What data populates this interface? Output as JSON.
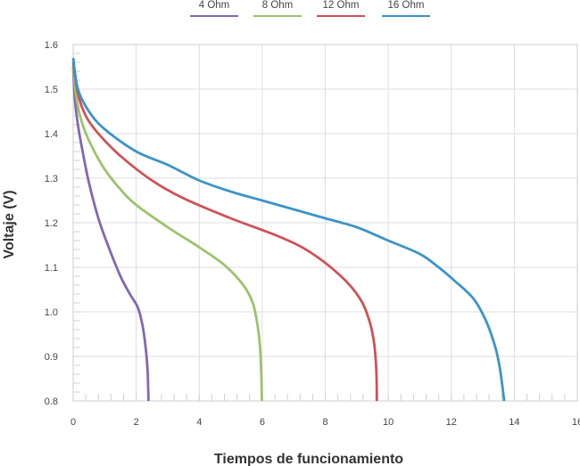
{
  "chart_data": {
    "type": "line",
    "title": "",
    "xlabel": "Tiempos de funcionamiento",
    "ylabel": "Voltaje (V)",
    "xlim": [
      0,
      16
    ],
    "ylim": [
      0.8,
      1.6
    ],
    "x_ticks": [
      "0",
      "2",
      "4",
      "6",
      "8",
      "10",
      "12",
      "14",
      "16"
    ],
    "y_ticks": [
      "0.8",
      "0.9",
      "1.0",
      "1.1",
      "1.2",
      "1.3",
      "1.4",
      "1.5",
      "1.6"
    ],
    "grid": true,
    "legend_position": "top-center",
    "series": [
      {
        "name": "4 Ohm",
        "color": "#8068b2",
        "points": [
          [
            0,
            1.55
          ],
          [
            0.05,
            1.48
          ],
          [
            0.15,
            1.42
          ],
          [
            0.3,
            1.36
          ],
          [
            0.5,
            1.29
          ],
          [
            0.8,
            1.21
          ],
          [
            1.1,
            1.15
          ],
          [
            1.5,
            1.08
          ],
          [
            1.8,
            1.04
          ],
          [
            2.05,
            1.01
          ],
          [
            2.2,
            0.97
          ],
          [
            2.3,
            0.92
          ],
          [
            2.36,
            0.87
          ],
          [
            2.38,
            0.83
          ],
          [
            2.39,
            0.8
          ]
        ]
      },
      {
        "name": "8 Ohm",
        "color": "#9bc36a",
        "points": [
          [
            0,
            1.55
          ],
          [
            0.1,
            1.48
          ],
          [
            0.3,
            1.42
          ],
          [
            0.6,
            1.37
          ],
          [
            1.0,
            1.32
          ],
          [
            1.5,
            1.275
          ],
          [
            2.0,
            1.24
          ],
          [
            3.0,
            1.19
          ],
          [
            4.0,
            1.145
          ],
          [
            4.8,
            1.105
          ],
          [
            5.4,
            1.06
          ],
          [
            5.7,
            1.02
          ],
          [
            5.85,
            0.97
          ],
          [
            5.93,
            0.92
          ],
          [
            5.97,
            0.86
          ],
          [
            5.99,
            0.8
          ]
        ]
      },
      {
        "name": "12 Ohm",
        "color": "#cf5156",
        "points": [
          [
            0,
            1.56
          ],
          [
            0.15,
            1.49
          ],
          [
            0.4,
            1.44
          ],
          [
            0.8,
            1.4
          ],
          [
            1.5,
            1.35
          ],
          [
            2.5,
            1.295
          ],
          [
            3.5,
            1.255
          ],
          [
            5.0,
            1.21
          ],
          [
            6.5,
            1.17
          ],
          [
            7.5,
            1.135
          ],
          [
            8.5,
            1.08
          ],
          [
            9.1,
            1.03
          ],
          [
            9.4,
            0.98
          ],
          [
            9.55,
            0.93
          ],
          [
            9.62,
            0.87
          ],
          [
            9.64,
            0.8
          ]
        ]
      },
      {
        "name": "16 Ohm",
        "color": "#3c94c8",
        "points": [
          [
            0,
            1.57
          ],
          [
            0.15,
            1.5
          ],
          [
            0.5,
            1.45
          ],
          [
            1.0,
            1.41
          ],
          [
            2.0,
            1.36
          ],
          [
            3.0,
            1.33
          ],
          [
            4.0,
            1.295
          ],
          [
            5.0,
            1.27
          ],
          [
            6.0,
            1.25
          ],
          [
            7.0,
            1.23
          ],
          [
            8.0,
            1.21
          ],
          [
            9.0,
            1.19
          ],
          [
            10.0,
            1.16
          ],
          [
            11.0,
            1.13
          ],
          [
            11.6,
            1.1
          ],
          [
            12.1,
            1.07
          ],
          [
            12.7,
            1.03
          ],
          [
            13.1,
            0.98
          ],
          [
            13.4,
            0.92
          ],
          [
            13.55,
            0.87
          ],
          [
            13.68,
            0.8
          ]
        ]
      }
    ]
  }
}
